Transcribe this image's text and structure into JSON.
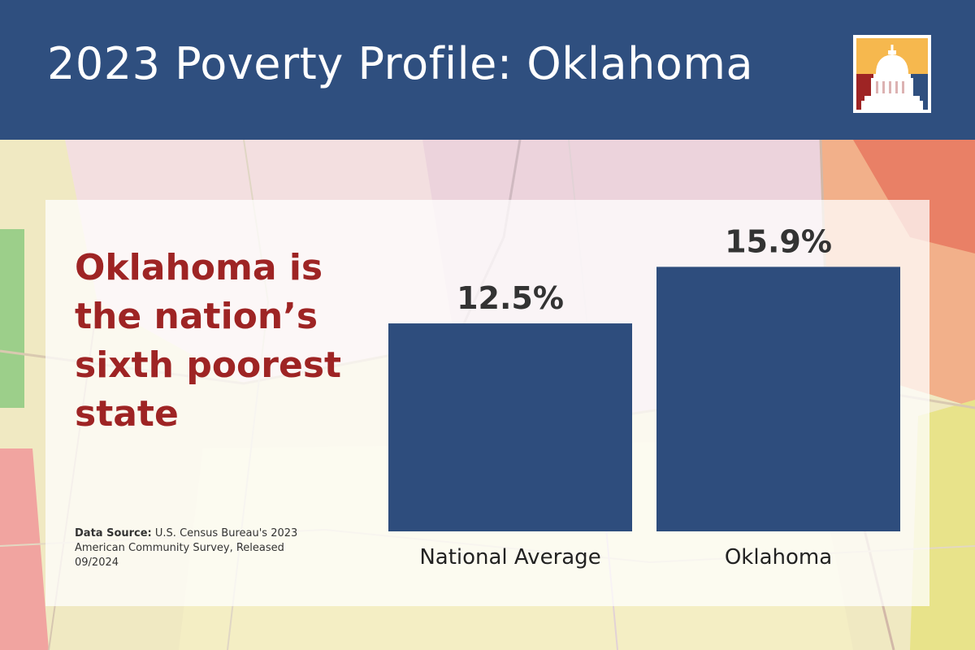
{
  "header": {
    "title": "2023 Poverty Profile: Oklahoma",
    "background_color": "#2f4f7f",
    "logo_icon": "capitol-dome-logo-icon"
  },
  "headline": "Oklahoma is the nation’s sixth poorest state",
  "source": {
    "label": "Data Source:",
    "text": "U.S. Census Bureau's 2023 American Community Survey, Released 09/2024"
  },
  "colors": {
    "bar": "#2e4d7d",
    "headline": "#9e2424",
    "logo_gold": "#f6b84e",
    "logo_red": "#9e2424",
    "logo_blue": "#2f4f7f"
  },
  "chart_data": {
    "type": "bar",
    "categories": [
      "National Average",
      "Oklahoma"
    ],
    "values": [
      12.5,
      15.9
    ],
    "value_labels": [
      "12.5%",
      "15.9%"
    ],
    "title": "",
    "xlabel": "",
    "ylabel": "",
    "ylim": [
      0,
      16.8
    ],
    "grid": false,
    "legend": "none"
  }
}
